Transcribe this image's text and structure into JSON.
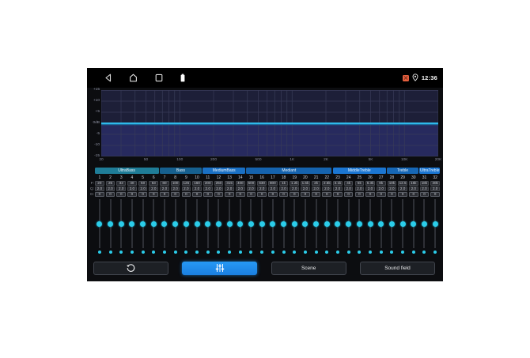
{
  "status_bar": {
    "time": "12:36",
    "nav_icons": [
      {
        "name": "back"
      },
      {
        "name": "home"
      },
      {
        "name": "recents"
      },
      {
        "name": "battery"
      }
    ],
    "right_icons": [
      {
        "name": "no-signal",
        "color": "#e45f3e"
      },
      {
        "name": "location"
      }
    ]
  },
  "graph": {
    "type": "line",
    "description": "flat equalizer frequency response curve",
    "curve_gain_db": 0,
    "gain_range_db": [
      -15,
      15
    ],
    "freq_range_hz": [
      20,
      20000
    ],
    "y_ticks": [
      "+15",
      "+10",
      "+5",
      "0dB",
      "-5",
      "-10",
      "-15"
    ],
    "x_ticks": [
      {
        "label": "20",
        "hz": 20
      },
      {
        "label": "50",
        "hz": 50
      },
      {
        "label": "100",
        "hz": 100
      },
      {
        "label": "200",
        "hz": 200
      },
      {
        "label": "500",
        "hz": 500
      },
      {
        "label": "1K",
        "hz": 1000
      },
      {
        "label": "2K",
        "hz": 2000
      },
      {
        "label": "5K",
        "hz": 5000
      },
      {
        "label": "10K",
        "hz": 10000
      },
      {
        "label": "20K",
        "hz": 20000
      }
    ],
    "line_color": "#2fb9ea",
    "fill_color": "#272a5e",
    "bg_color": "#1d1f38",
    "grid_color": "#383b58"
  },
  "bands_table": {
    "row_labels": [
      "F:",
      "Q:",
      "G:"
    ],
    "groups": [
      {
        "label": "UltraBass",
        "span": 6,
        "color": "#1f7d98"
      },
      {
        "label": "Bass",
        "span": 4,
        "color": "#16608f"
      },
      {
        "label": "MediumBass",
        "span": 4,
        "color": "#1a70c4"
      },
      {
        "label": "Mediant",
        "span": 8,
        "color": "#1563ae"
      },
      {
        "label": "MiddleTreble",
        "span": 5,
        "color": "#1b76d2"
      },
      {
        "label": "Treble",
        "span": 3,
        "color": "#1667b6"
      },
      {
        "label": "UltraTreble",
        "span": 2,
        "color": "#1b76d2"
      }
    ],
    "numbers": [
      "1",
      "2",
      "3",
      "4",
      "5",
      "6",
      "7",
      "8",
      "9",
      "10",
      "11",
      "12",
      "13",
      "14",
      "15",
      "16",
      "17",
      "18",
      "19",
      "20",
      "21",
      "22",
      "23",
      "24",
      "25",
      "26",
      "27",
      "28",
      "29",
      "30",
      "31",
      "32"
    ],
    "freqs": [
      "20",
      "25",
      "32",
      "40",
      "50",
      "63",
      "80",
      "100",
      "125",
      "160",
      "200",
      "250",
      "315",
      "400",
      "500",
      "630",
      "800",
      "1k",
      "1.2k",
      "1.6k",
      "2k",
      "2.5k",
      "3.1k",
      "4k",
      "5k",
      "6.3k",
      "8k",
      "10k",
      "12.5",
      "16k",
      "18k",
      "20k"
    ],
    "q_values": [
      "2.0",
      "2.0",
      "2.0",
      "2.0",
      "2.0",
      "2.0",
      "2.0",
      "2.0",
      "2.0",
      "2.0",
      "2.0",
      "2.0",
      "2.0",
      "2.0",
      "2.0",
      "2.0",
      "2.0",
      "2.0",
      "2.0",
      "2.0",
      "2.0",
      "2.0",
      "2.0",
      "2.0",
      "2.0",
      "2.0",
      "2.0",
      "2.0",
      "2.0",
      "2.0",
      "2.0",
      "2.0"
    ],
    "gains": [
      "0",
      "0",
      "0",
      "0",
      "0",
      "0",
      "0",
      "0",
      "0",
      "0",
      "0",
      "0",
      "0",
      "0",
      "0",
      "0",
      "0",
      "0",
      "0",
      "0",
      "0",
      "0",
      "0",
      "0",
      "0",
      "0",
      "0",
      "0",
      "0",
      "0",
      "0",
      "0"
    ]
  },
  "sliders": {
    "count": 32,
    "value_db": 0,
    "dot_color": "#2bcdea"
  },
  "toolbar": {
    "buttons": [
      {
        "name": "reset",
        "icon": "reset-icon",
        "active": false
      },
      {
        "name": "equalizer",
        "icon": "equalizer-icon",
        "active": true,
        "active_color": "#2196f3"
      },
      {
        "name": "scene",
        "label": "Scene",
        "active": false
      },
      {
        "name": "soundfield",
        "label": "Sound field",
        "active": false
      }
    ]
  }
}
